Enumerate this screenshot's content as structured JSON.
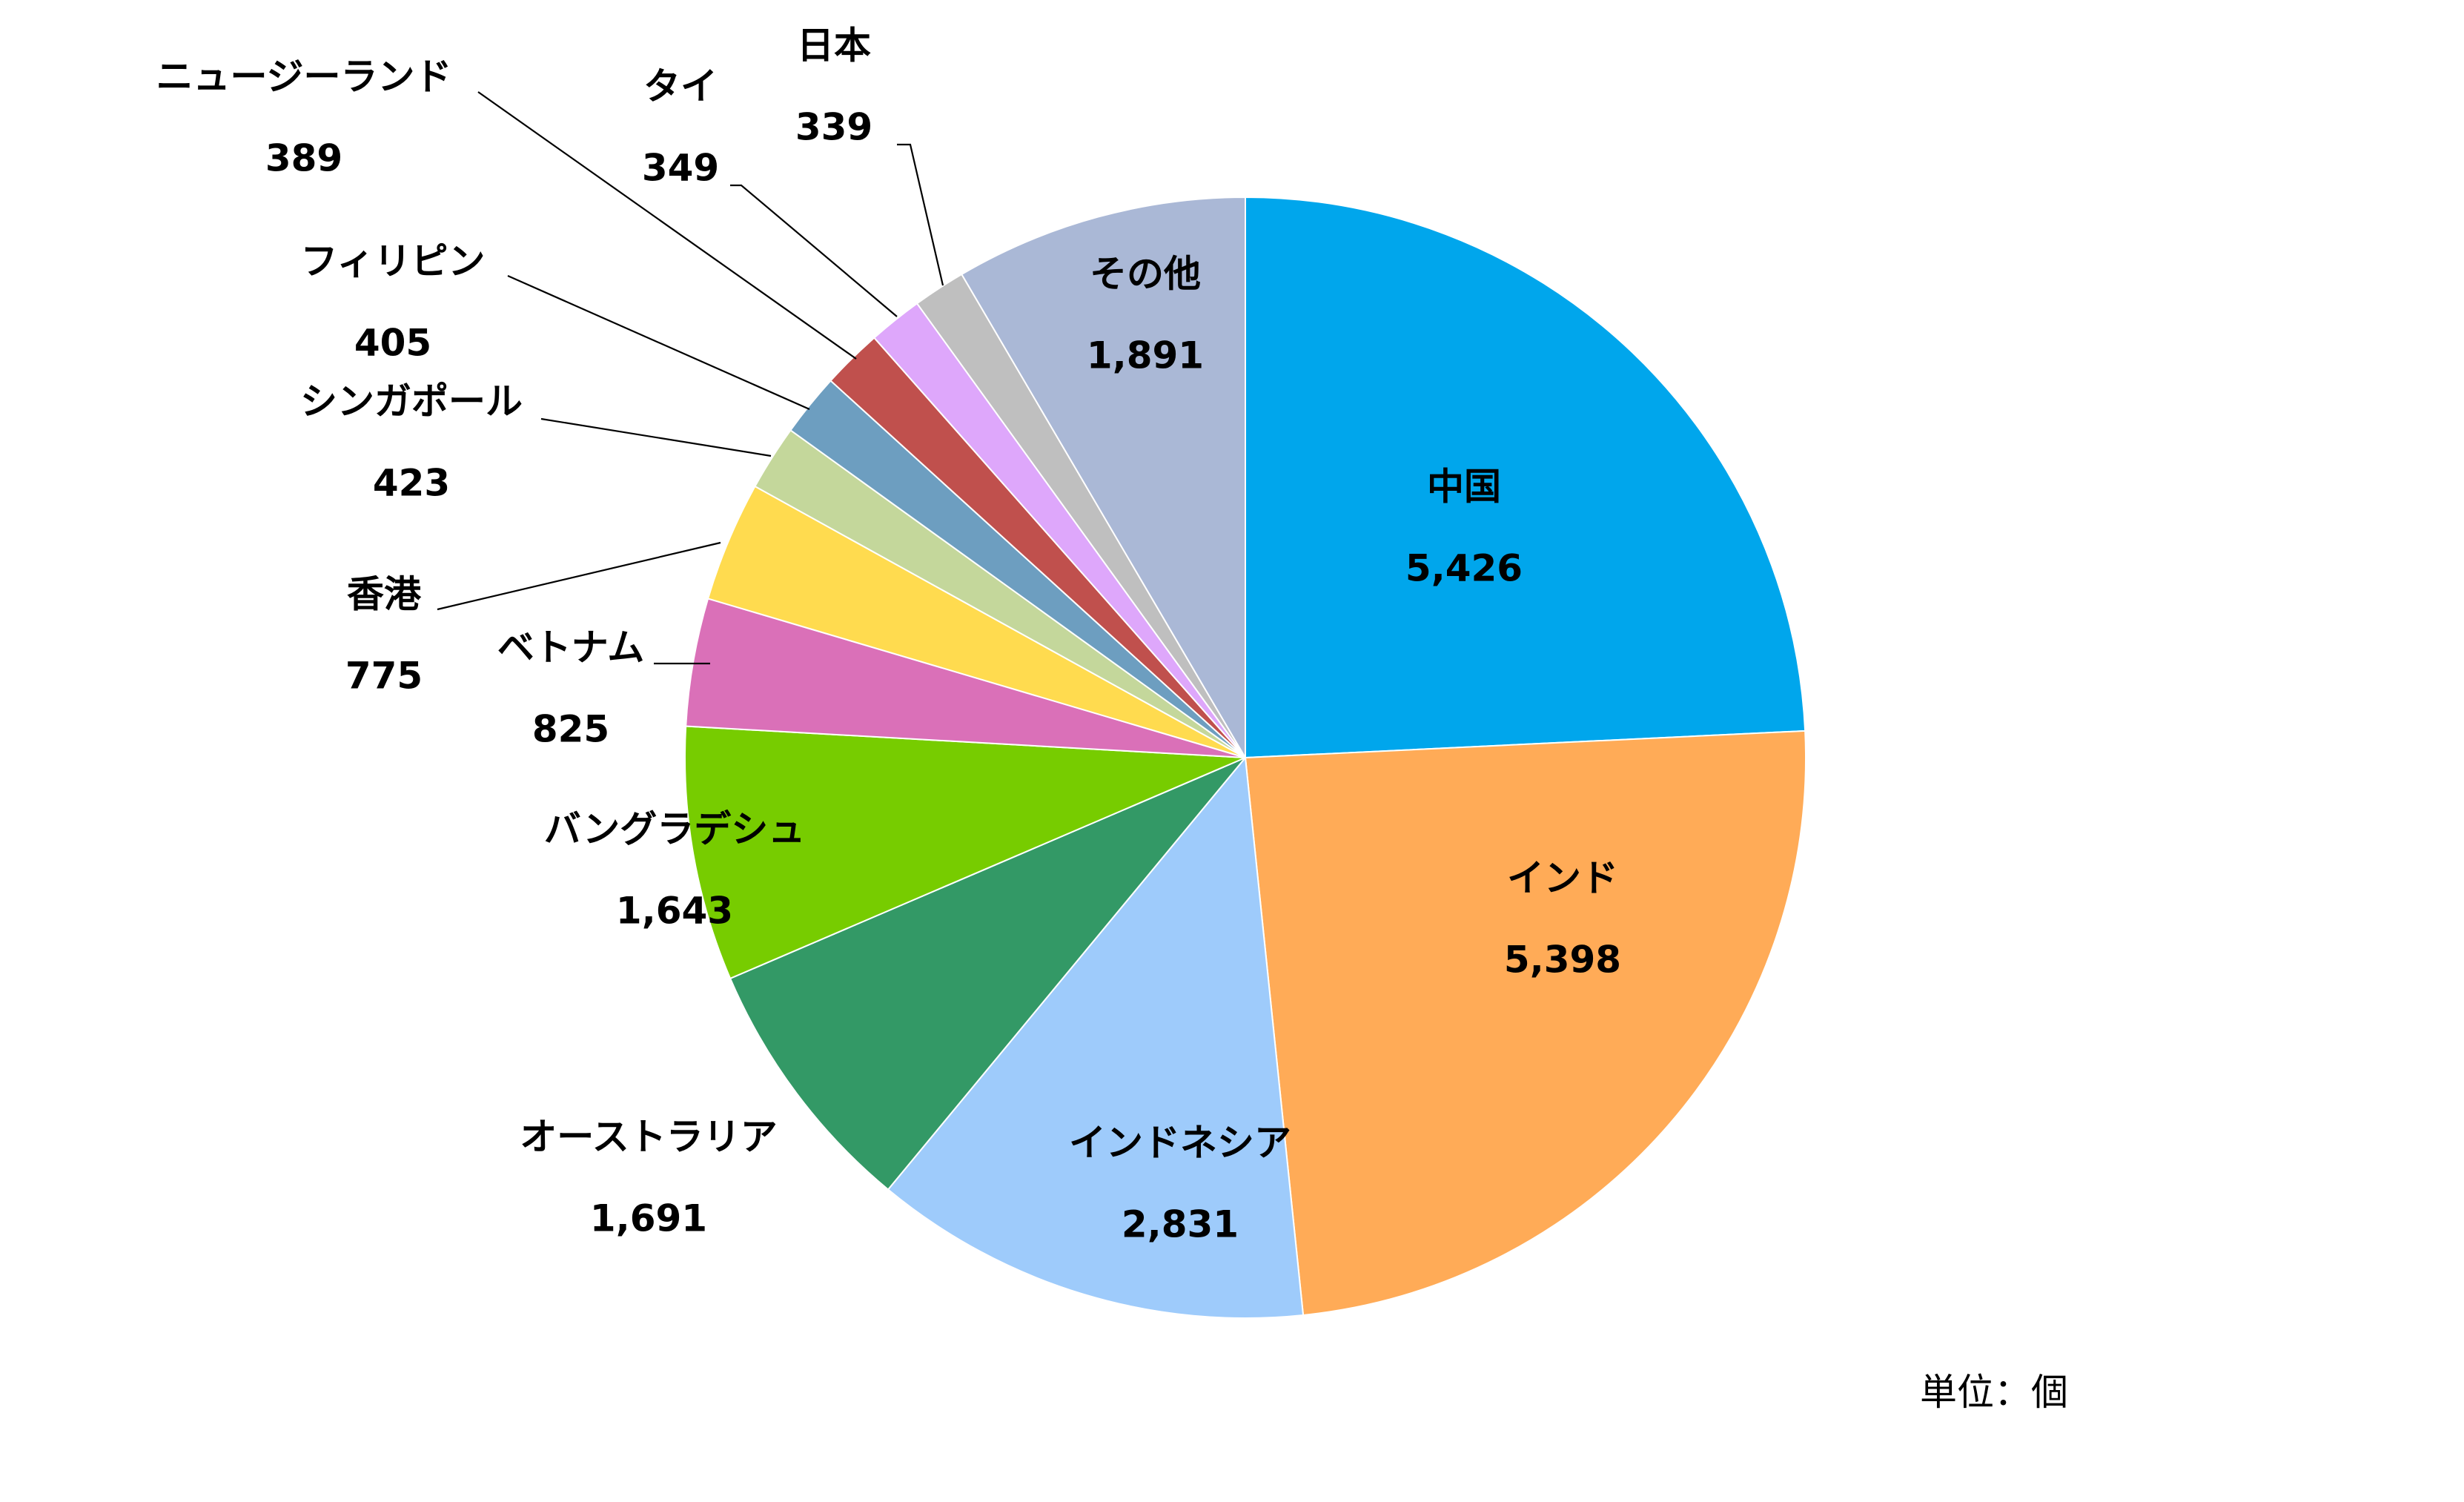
{
  "chart_data": {
    "type": "pie",
    "unit_note": "単位：個",
    "slices": [
      {
        "label": "中国",
        "value": 5426,
        "display": "5,426",
        "color": "#00A6EC"
      },
      {
        "label": "インド",
        "value": 5398,
        "display": "5,398",
        "color": "#FFAB57"
      },
      {
        "label": "インドネシア",
        "value": 2831,
        "display": "2,831",
        "color": "#9ECBFB"
      },
      {
        "label": "オーストラリア",
        "value": 1691,
        "display": "1,691",
        "color": "#339966"
      },
      {
        "label": "バングラデシュ",
        "value": 1643,
        "display": "1,643",
        "color": "#77CC00"
      },
      {
        "label": "ベトナム",
        "value": 825,
        "display": "825",
        "color": "#DA70B8"
      },
      {
        "label": "香港",
        "value": 775,
        "display": "775",
        "color": "#FFDB4F"
      },
      {
        "label": "シンガポール",
        "value": 423,
        "display": "423",
        "color": "#C4D79B"
      },
      {
        "label": "フィリピン",
        "value": 405,
        "display": "405",
        "color": "#6D9EC0"
      },
      {
        "label": "ニュージーランド",
        "value": 389,
        "display": "389",
        "color": "#C0504D"
      },
      {
        "label": "タイ",
        "value": 349,
        "display": "349",
        "color": "#DEA7FB"
      },
      {
        "label": "日本",
        "value": 339,
        "display": "339",
        "color": "#BFBFBF"
      },
      {
        "label": "その他",
        "value": 1891,
        "display": "1,891",
        "color": "#AAB8D6"
      }
    ]
  }
}
